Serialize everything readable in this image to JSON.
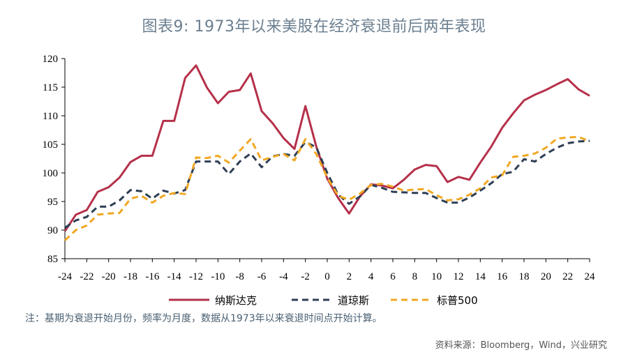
{
  "title": "图表9: 1973年以来美股在经济衰退前后两年表现",
  "note": "注：基期为衰退开始月份，频率为月度，数据从1973年以来衰退时间点开始计算。",
  "source": "资料来源：Bloomberg，Wind，兴业研究",
  "chart_data": {
    "type": "line",
    "title": "图表9: 1973年以来美股在经济衰退前后两年表现",
    "xlabel": "",
    "ylabel": "",
    "xlim": [
      -24,
      24
    ],
    "ylim": [
      85,
      120
    ],
    "x_ticks": [
      "-24",
      "-22",
      "-20",
      "-18",
      "-16",
      "-14",
      "-12",
      "-10",
      "-8",
      "-6",
      "-4",
      "-2",
      "0",
      "2",
      "4",
      "6",
      "8",
      "10",
      "12",
      "14",
      "16",
      "18",
      "20",
      "22",
      "24"
    ],
    "y_ticks": [
      "85",
      "90",
      "95",
      "100",
      "105",
      "110",
      "115",
      "120"
    ],
    "grid": false,
    "legend_position": "bottom",
    "x": [
      -24,
      -23,
      -22,
      -21,
      -20,
      -19,
      -18,
      -17,
      -16,
      -15,
      -14,
      -13,
      -12,
      -11,
      -10,
      -9,
      -8,
      -7,
      -6,
      -5,
      -4,
      -3,
      -2,
      -1,
      0,
      1,
      2,
      3,
      4,
      5,
      6,
      7,
      8,
      9,
      10,
      11,
      12,
      13,
      14,
      15,
      16,
      17,
      18,
      19,
      20,
      21,
      22,
      23,
      24
    ],
    "series": [
      {
        "name": "纳斯达克",
        "color": "#b5304a",
        "style": "solid",
        "values": [
          89.8,
          92.7,
          93.5,
          96.7,
          97.5,
          99.2,
          101.9,
          103.0,
          103.0,
          109.1,
          109.1,
          116.6,
          118.8,
          114.9,
          112.2,
          114.2,
          114.5,
          117.4,
          110.8,
          108.7,
          106.1,
          104.2,
          111.7,
          104.6,
          99.0,
          95.6,
          92.9,
          95.9,
          98.0,
          97.8,
          97.3,
          98.8,
          100.6,
          101.4,
          101.2,
          98.4,
          99.3,
          98.8,
          101.8,
          104.6,
          107.9,
          110.4,
          112.7,
          113.7,
          114.5,
          115.5,
          116.4,
          114.6,
          113.5
        ]
      },
      {
        "name": "道琼斯",
        "color": "#2e3e55",
        "style": "dashed",
        "values": [
          90.4,
          91.7,
          92.3,
          94.1,
          94.1,
          95.2,
          97.0,
          96.8,
          95.5,
          96.9,
          96.4,
          97.0,
          102.0,
          102.0,
          102.0,
          99.8,
          102.0,
          103.4,
          101.0,
          102.9,
          103.3,
          103.0,
          105.4,
          104.5,
          100.0,
          96.2,
          94.6,
          95.9,
          97.9,
          97.4,
          96.7,
          96.6,
          96.5,
          96.5,
          95.6,
          94.8,
          94.8,
          95.7,
          96.9,
          98.2,
          99.8,
          100.2,
          102.4,
          102.0,
          103.3,
          104.4,
          105.2,
          105.5,
          105.6
        ]
      },
      {
        "name": "标普500",
        "color": "#f0a823",
        "style": "dashed",
        "values": [
          88.2,
          90.0,
          90.8,
          92.7,
          92.9,
          93.0,
          95.5,
          96.0,
          94.8,
          96.0,
          96.5,
          96.3,
          102.7,
          102.6,
          103.0,
          101.8,
          103.9,
          105.9,
          102.2,
          102.8,
          103.3,
          102.2,
          105.9,
          103.3,
          99.2,
          96.0,
          95.3,
          96.4,
          97.9,
          98.1,
          97.6,
          96.9,
          97.1,
          97.2,
          96.1,
          95.2,
          95.4,
          96.2,
          97.3,
          99.2,
          99.6,
          102.8,
          103.0,
          103.4,
          104.4,
          106.0,
          106.2,
          106.3,
          105.5
        ]
      }
    ]
  }
}
